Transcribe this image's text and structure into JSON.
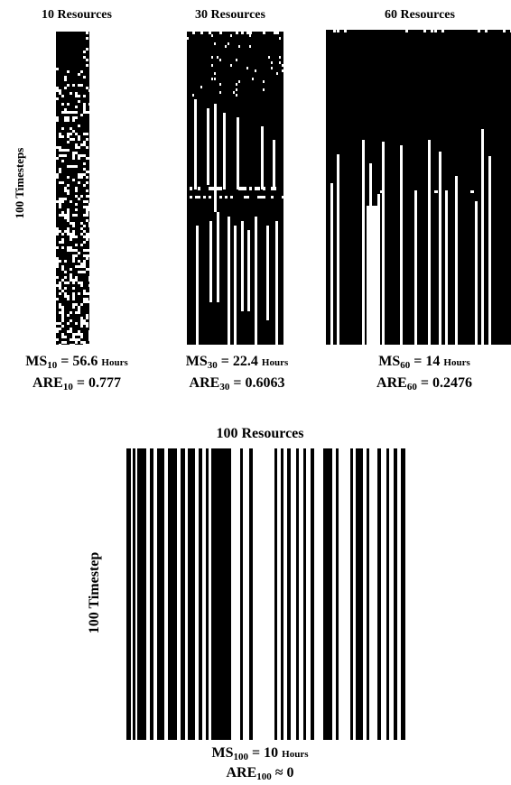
{
  "panels": [
    {
      "id": "r10",
      "title": "10 Resources",
      "ylabel": "100 Timesteps",
      "ms_label": "MS",
      "ms_sub": "10",
      "ms_value": "= 56.6",
      "ms_unit": "Hours",
      "are_label": "ARE",
      "are_sub": "10",
      "are_value": "= 0.777",
      "makespan_hours": 56.6,
      "are": 0.777,
      "resources": 10,
      "timesteps": 100
    },
    {
      "id": "r30",
      "title": "30 Resources",
      "ms_label": "MS",
      "ms_sub": "30",
      "ms_value": "= 22.4",
      "ms_unit": "Hours",
      "are_label": "ARE",
      "are_sub": "30",
      "are_value": "= 0.6063",
      "makespan_hours": 22.4,
      "are": 0.6063,
      "resources": 30,
      "timesteps": 100
    },
    {
      "id": "r60",
      "title": "60 Resources",
      "ms_label": "MS",
      "ms_sub": "60",
      "ms_value": "= 14",
      "ms_unit": "Hours",
      "are_label": "ARE",
      "are_sub": "60",
      "are_value": "= 0.2476",
      "makespan_hours": 14,
      "are": 0.2476,
      "resources": 60,
      "timesteps": 100
    },
    {
      "id": "r100",
      "title": "100 Resources",
      "ylabel": "100 Timestep",
      "ms_label": "MS",
      "ms_sub": "100",
      "ms_value": "= 10",
      "ms_unit": "Hours",
      "are_label": "ARE",
      "are_sub": "100",
      "are_value": "≈ 0",
      "makespan_hours": 10,
      "are": 0,
      "resources": 100,
      "timesteps": 100
    }
  ],
  "colors": {
    "busy": "#000000",
    "idle": "#ffffff"
  }
}
